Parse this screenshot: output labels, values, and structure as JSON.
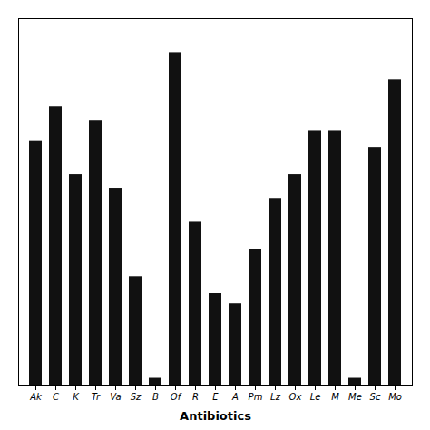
{
  "chart_data": {
    "type": "bar",
    "categories": [
      "Ak",
      "C",
      "K",
      "Tr",
      "Va",
      "Sz",
      "B",
      "Of",
      "R",
      "E",
      "A",
      "Pm",
      "Lz",
      "Ox",
      "Le",
      "M",
      "Me",
      "Sc",
      "Mo"
    ],
    "values": [
      72,
      82,
      62,
      78,
      58,
      32,
      2,
      98,
      48,
      27,
      24,
      40,
      55,
      62,
      75,
      75,
      2,
      70,
      90
    ],
    "color": "#111111",
    "xlabel": "Antibiotics",
    "ylim": [
      0,
      108
    ],
    "tick_labels": "x"
  }
}
